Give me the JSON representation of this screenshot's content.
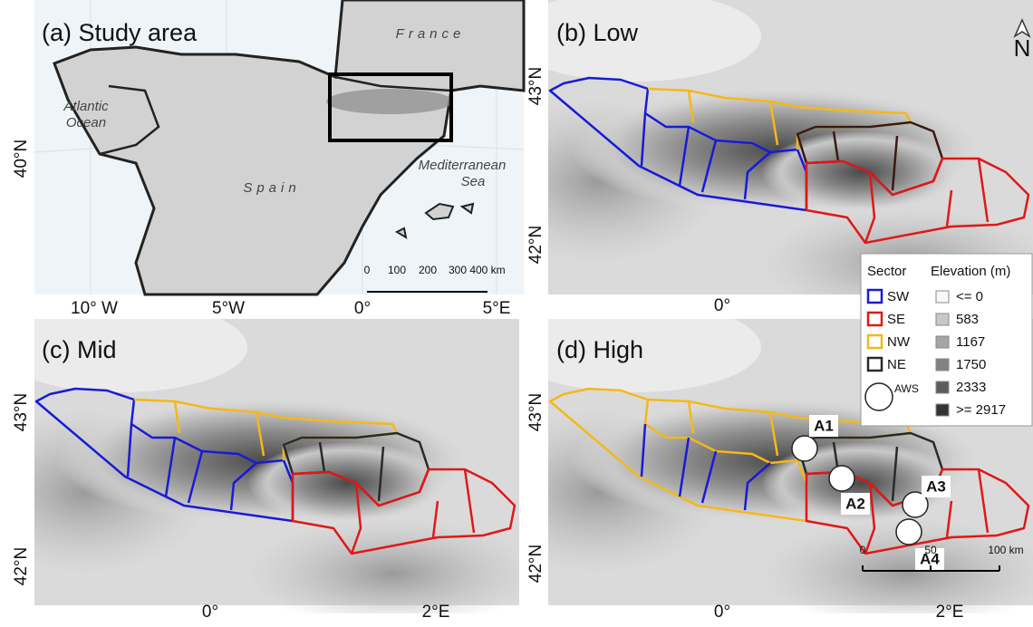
{
  "panels": [
    {
      "title": "(a) Study area",
      "lat_labels": [
        "40°N"
      ],
      "lon_labels": [
        "10° W",
        "5°W",
        "0°",
        "5°E"
      ],
      "places": {
        "france": "France",
        "ocean": [
          "Atlantic",
          "Ocean"
        ],
        "spain": "Spain",
        "sea": [
          "Mediterranean",
          "Sea"
        ]
      },
      "scale_bar": [
        "0",
        "100",
        "200",
        "300",
        "400 km"
      ]
    },
    {
      "title": "(b) Low",
      "lat_labels": [
        "43°N",
        "42°N"
      ],
      "lon_labels": [
        "0°"
      ]
    },
    {
      "title": "(c) Mid",
      "lat_labels": [
        "43°N",
        "42°N"
      ],
      "lon_labels": [
        "0°",
        "2°E"
      ]
    },
    {
      "title": "(d) High",
      "lat_labels": [
        "43°N",
        "42°N"
      ],
      "lon_labels": [
        "0°",
        "2°E"
      ],
      "stations": [
        "A1",
        "A2",
        "A3",
        "A4"
      ],
      "scale_bar": [
        "0",
        "50",
        "100 km"
      ]
    }
  ],
  "legend": {
    "sector_heading": "Sector",
    "elevation_heading": "Elevation (m)",
    "sectors": [
      "SW",
      "SE",
      "NW",
      "NE"
    ],
    "station": "AWS",
    "elevation": [
      "<= 0",
      "583",
      "1167",
      "1750",
      "2333",
      ">= 2917"
    ]
  },
  "north_arrow": "N"
}
